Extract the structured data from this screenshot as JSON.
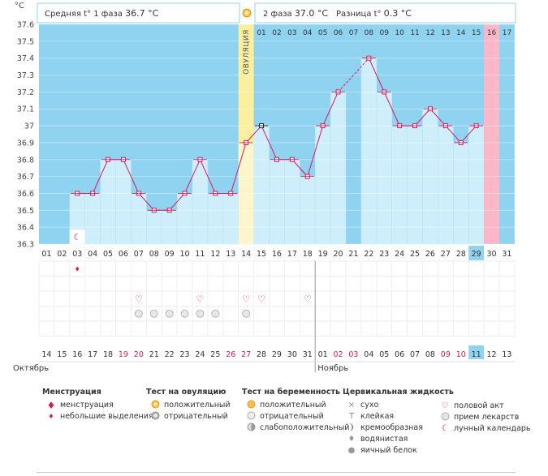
{
  "chart_data": {
    "type": "line",
    "unit_label": "°C",
    "header": {
      "phase1": "Средняя t° 1 фаза",
      "phase1_value": "36.7 °C",
      "phase2": "2 фаза",
      "phase2_value": "37.0 °C",
      "diff": "Разница t°",
      "diff_value": "0.3 °C"
    },
    "ylim": [
      36.3,
      37.6
    ],
    "y_ticks": [
      "37.6",
      "37.5",
      "37.4",
      "37.3",
      "37.2",
      "37.1",
      "37",
      "36.9",
      "36.8",
      "36.7",
      "36.6",
      "36.5",
      "36.4",
      "36.3"
    ],
    "cycle_days": [
      "01",
      "02",
      "03",
      "04",
      "05",
      "06",
      "07",
      "08",
      "09",
      "10",
      "11",
      "12",
      "13",
      "14",
      "15",
      "16",
      "17",
      "18",
      "19",
      "20",
      "21",
      "22",
      "23",
      "24",
      "25",
      "26",
      "27",
      "28",
      "29",
      "30",
      "31"
    ],
    "highlight_cycle_day": "29",
    "temperatures": [
      null,
      null,
      36.6,
      36.6,
      36.8,
      36.8,
      36.6,
      36.5,
      36.5,
      36.6,
      36.8,
      36.6,
      36.6,
      36.9,
      37.0,
      36.8,
      36.8,
      36.7,
      37.0,
      37.2,
      null,
      37.4,
      37.2,
      37.0,
      37.0,
      37.1,
      37.0,
      36.9,
      37.0,
      null,
      null
    ],
    "gap_dashed": [
      20,
      22
    ],
    "ovulation_index": 14,
    "ovulation_label": "ОВУЛЯЦИЯ",
    "phase2_days": [
      "01",
      "02",
      "03",
      "04",
      "05",
      "06",
      "07",
      "08",
      "09",
      "10",
      "11",
      "12",
      "13",
      "14",
      "15",
      "16",
      "17"
    ],
    "phase2_start": 15,
    "phase2_highlight": "16",
    "moon_index": 3,
    "menstruation_index": 3,
    "hearts": [
      7,
      11,
      14,
      15,
      18
    ],
    "pills": [
      7,
      8,
      9,
      10,
      11,
      12,
      14
    ],
    "dates": [
      {
        "d": "14",
        "red": false
      },
      {
        "d": "15",
        "red": false
      },
      {
        "d": "16",
        "red": false
      },
      {
        "d": "17",
        "red": false
      },
      {
        "d": "18",
        "red": false
      },
      {
        "d": "19",
        "red": true
      },
      {
        "d": "20",
        "red": true
      },
      {
        "d": "21",
        "red": false
      },
      {
        "d": "22",
        "red": false
      },
      {
        "d": "23",
        "red": false
      },
      {
        "d": "24",
        "red": false
      },
      {
        "d": "25",
        "red": false
      },
      {
        "d": "26",
        "red": true
      },
      {
        "d": "27",
        "red": true
      },
      {
        "d": "28",
        "red": false
      },
      {
        "d": "29",
        "red": false
      },
      {
        "d": "30",
        "red": false
      },
      {
        "d": "31",
        "red": false
      },
      {
        "d": "01",
        "red": false
      },
      {
        "d": "02",
        "red": true
      },
      {
        "d": "03",
        "red": true
      },
      {
        "d": "04",
        "red": false
      },
      {
        "d": "05",
        "red": false
      },
      {
        "d": "06",
        "red": false
      },
      {
        "d": "07",
        "red": false
      },
      {
        "d": "08",
        "red": false
      },
      {
        "d": "09",
        "red": true
      },
      {
        "d": "10",
        "red": true
      },
      {
        "d": "11",
        "red": false
      },
      {
        "d": "12",
        "red": false
      },
      {
        "d": "13",
        "red": false
      }
    ],
    "today_date_index": 29,
    "month_left": "Октябрь",
    "month_right": "Ноябрь",
    "month_split_index": 19,
    "colors": {
      "sky": "#8fd3f0",
      "bar": "#cfeefc",
      "line": "#d8195c",
      "ovulation": "#fcef9d",
      "highlight_blue": "#8fd3f0",
      "highlight_pink": "#fbb6c8"
    }
  },
  "legend": {
    "menstruation": {
      "title": "Менструация",
      "items": [
        {
          "icon": "drop-large",
          "label": "менструация"
        },
        {
          "icon": "drop-small",
          "label": "небольшие выделения"
        }
      ]
    },
    "ovulation_test": {
      "title": "Тест на овуляцию",
      "items": [
        {
          "icon": "sun-orange",
          "label": "положительный"
        },
        {
          "icon": "sun-gray",
          "label": "отрицательный"
        }
      ]
    },
    "pregnancy_test": {
      "title": "Тест на беременность",
      "items": [
        {
          "icon": "circle-orange",
          "label": "положительный"
        },
        {
          "icon": "circle-light",
          "label": "отрицательный"
        },
        {
          "icon": "circle-half",
          "label": "слабоположительный"
        }
      ]
    },
    "cervical_fluid": {
      "title": "Цервикальная жидкость",
      "items": [
        {
          "icon": "cross",
          "label": "сухо"
        },
        {
          "icon": "t-sign",
          "label": "клейкая"
        },
        {
          "icon": "swirl",
          "label": "кремообразная"
        },
        {
          "icon": "drop",
          "label": "водянистая"
        },
        {
          "icon": "egg",
          "label": "яичный белок"
        }
      ]
    },
    "other": {
      "items": [
        {
          "icon": "heart",
          "label": "половой акт"
        },
        {
          "icon": "pill",
          "label": "прием лекарств"
        },
        {
          "icon": "moon",
          "label": "лунный календарь"
        }
      ]
    }
  }
}
